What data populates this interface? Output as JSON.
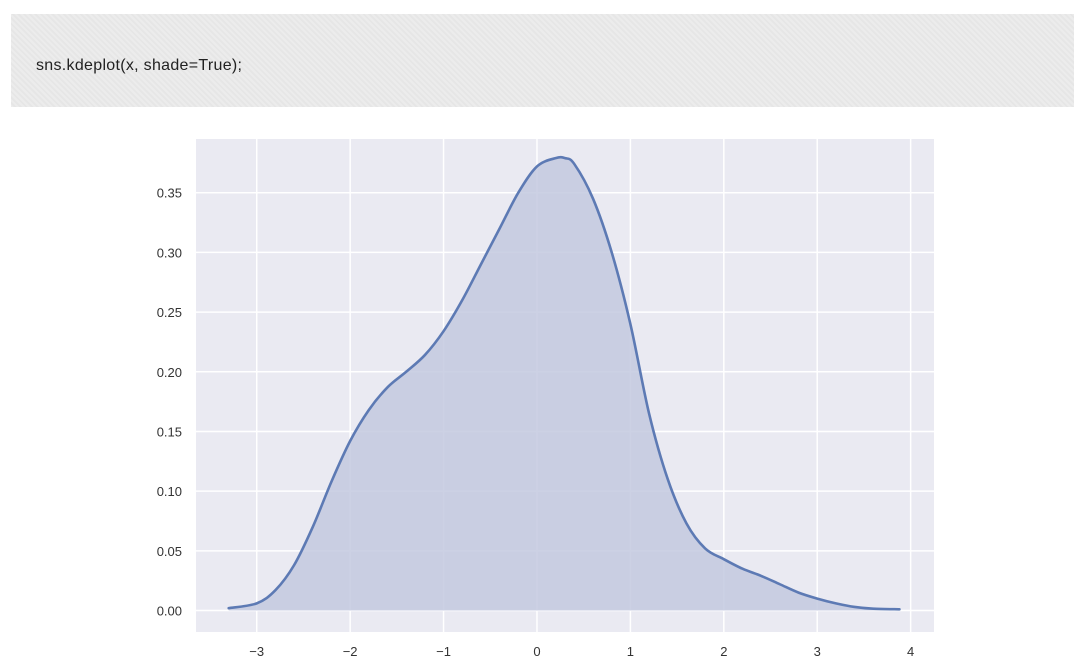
{
  "code_cell": {
    "code": "sns.kdeplot(x, shade=True);"
  },
  "chart_data": {
    "type": "area",
    "title": "",
    "xlabel": "",
    "ylabel": "",
    "xlim": [
      -3.65,
      4.25
    ],
    "ylim": [
      -0.018,
      0.395
    ],
    "xticks": [
      -3,
      -2,
      -1,
      0,
      1,
      2,
      3,
      4
    ],
    "xtick_labels": [
      "−3",
      "−2",
      "−1",
      "0",
      "1",
      "2",
      "3",
      "4"
    ],
    "yticks": [
      0.0,
      0.05,
      0.1,
      0.15,
      0.2,
      0.25,
      0.3,
      0.35
    ],
    "ytick_labels": [
      "0.00",
      "0.05",
      "0.10",
      "0.15",
      "0.20",
      "0.25",
      "0.30",
      "0.35"
    ],
    "grid": true,
    "colors": {
      "line": "#5d7ab4",
      "fill": "#c3c9df",
      "background": "#eaeaf2",
      "grid": "#ffffff"
    },
    "series": [
      {
        "x": [
          -3.3,
          -3.0,
          -2.8,
          -2.6,
          -2.4,
          -2.2,
          -2.0,
          -1.8,
          -1.6,
          -1.4,
          -1.2,
          -1.0,
          -0.8,
          -0.6,
          -0.4,
          -0.2,
          0.0,
          0.2,
          0.3,
          0.4,
          0.6,
          0.8,
          1.0,
          1.2,
          1.4,
          1.6,
          1.8,
          2.0,
          2.2,
          2.4,
          2.6,
          2.8,
          3.0,
          3.2,
          3.4,
          3.6,
          3.88
        ],
        "y": [
          0.002,
          0.006,
          0.017,
          0.038,
          0.07,
          0.108,
          0.142,
          0.168,
          0.187,
          0.2,
          0.214,
          0.234,
          0.26,
          0.29,
          0.32,
          0.35,
          0.372,
          0.379,
          0.379,
          0.374,
          0.345,
          0.3,
          0.24,
          0.165,
          0.11,
          0.073,
          0.052,
          0.043,
          0.035,
          0.029,
          0.022,
          0.015,
          0.01,
          0.006,
          0.003,
          0.0015,
          0.001
        ]
      }
    ]
  }
}
